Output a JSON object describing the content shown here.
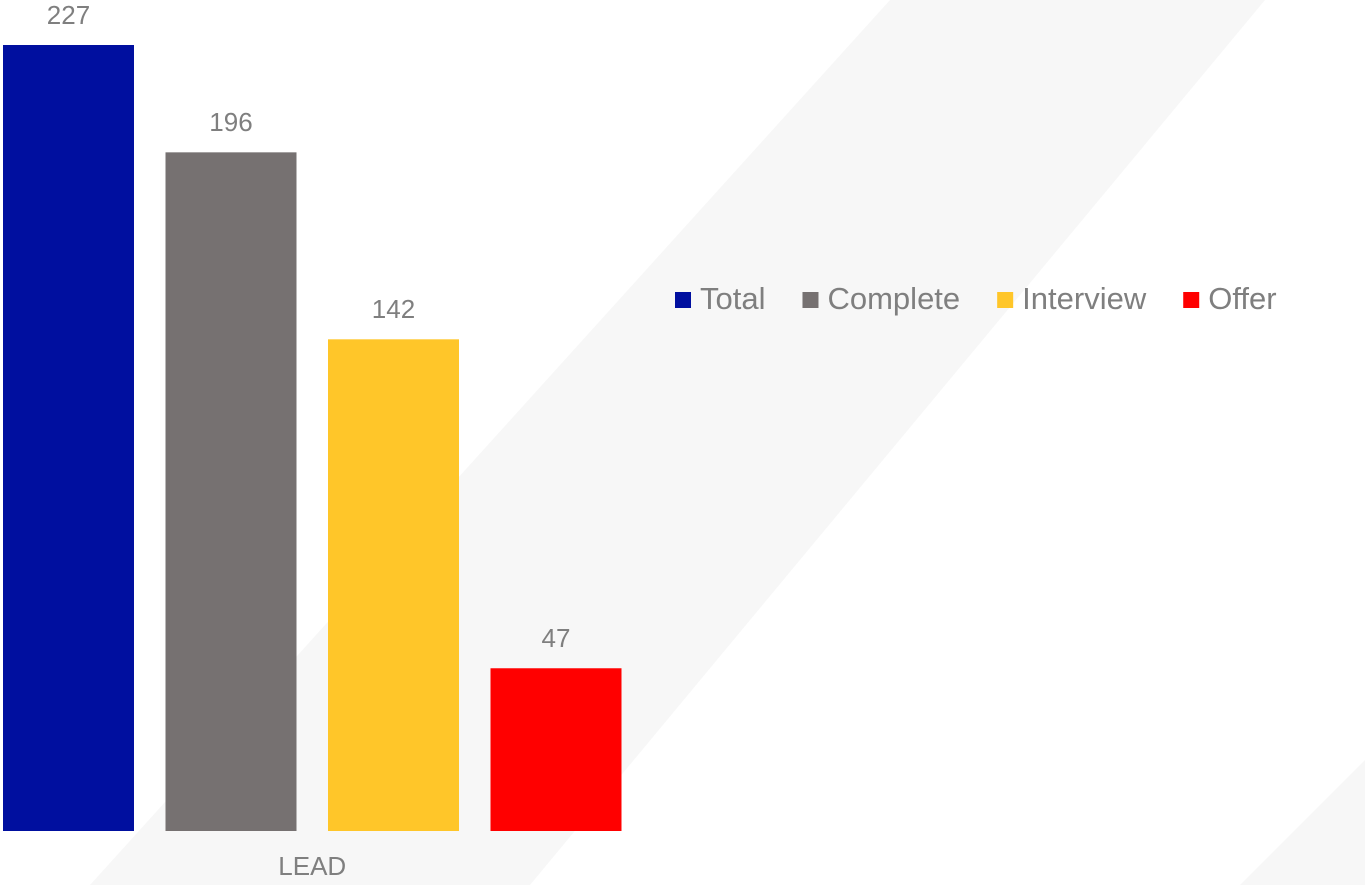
{
  "chart_data": {
    "type": "bar",
    "categories": [
      "LEAD"
    ],
    "series": [
      {
        "name": "Total",
        "color": "#000f9f",
        "values": [
          227
        ]
      },
      {
        "name": "Complete",
        "color": "#767171",
        "values": [
          196
        ]
      },
      {
        "name": "Interview",
        "color": "#ffc629",
        "values": [
          142
        ]
      },
      {
        "name": "Offer",
        "color": "#ff0000",
        "values": [
          47
        ]
      }
    ],
    "legend": "right"
  }
}
